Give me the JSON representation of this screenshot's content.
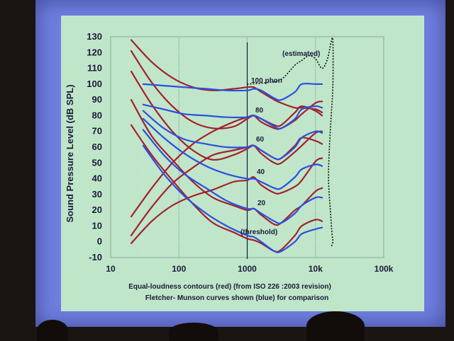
{
  "chart_data": {
    "type": "line",
    "title": "",
    "ylabel": "Sound Pressure Level (dB SPL)",
    "xlabel": "",
    "x_scale": "log",
    "xlim": [
      10,
      100000
    ],
    "ylim": [
      -10,
      130
    ],
    "x_ticks": [
      "10",
      "100",
      "1000",
      "10k",
      "100k"
    ],
    "y_ticks": [
      "130",
      "120",
      "110",
      "100",
      "90",
      "80",
      "70",
      "60",
      "50",
      "40",
      "30",
      "20",
      "10",
      "0",
      "-10"
    ],
    "grid": true,
    "caption_lines": [
      "Equal-loudness contours (red) (from ISO 226 :2003 revision)",
      "Fletcher- Munson curves shown (blue) for comparison"
    ],
    "annotations": {
      "estimated": "(estimated)",
      "phon100": "100 phon",
      "phon80": "80",
      "phon60": "60",
      "phon40": "40",
      "phon20": "20",
      "threshold": "(threshold)"
    },
    "colors": {
      "red": "#a4202c",
      "blue": "#2a50e0",
      "dotted": "#101010",
      "vline": "#101a40"
    },
    "vertical_line_x": 1000,
    "series": [
      {
        "color": "red",
        "x": [
          20,
          40,
          80,
          160,
          315,
          630,
          1000,
          1250,
          1600,
          2500,
          3150,
          5000,
          6300,
          10000,
          12500
        ],
        "y": [
          -1,
          13,
          23,
          29,
          33,
          38,
          39,
          41,
          36,
          31,
          31,
          35,
          39,
          51,
          53
        ]
      },
      {
        "color": "red",
        "x": [
          20,
          40,
          80,
          160,
          315,
          630,
          1000,
          1250,
          1600,
          2500,
          3150,
          5000,
          6300,
          10000,
          12500
        ],
        "y": [
          4,
          22,
          37,
          47,
          55,
          58,
          60,
          61,
          56,
          50,
          50,
          57,
          61,
          69,
          70
        ]
      },
      {
        "color": "red",
        "x": [
          20,
          40,
          80,
          160,
          315,
          630,
          1000,
          1250,
          1600,
          2500,
          3150,
          5000,
          6300,
          10000,
          12500
        ],
        "y": [
          16,
          34,
          50,
          62,
          70,
          76,
          79,
          80,
          76,
          72,
          72,
          77,
          81,
          88,
          89
        ]
      },
      {
        "color": "red",
        "x": [
          20,
          40,
          80,
          160,
          315,
          630,
          1000,
          1250,
          1600,
          2500,
          3150,
          5000,
          6300,
          10000,
          12500
        ],
        "y": [
          74,
          55,
          39,
          24,
          12,
          6,
          2,
          1,
          -1,
          -6,
          -5,
          4,
          10,
          14,
          13
        ]
      },
      {
        "color": "red",
        "x": [
          20,
          40,
          80,
          160,
          315,
          630,
          1000,
          1250,
          1600,
          2500,
          3150,
          5000,
          6300,
          10000,
          12500
        ],
        "y": [
          90,
          67,
          52,
          38,
          28,
          23,
          20,
          21,
          17,
          11,
          12,
          20,
          23,
          32,
          34
        ]
      },
      {
        "color": "red",
        "x": [
          20,
          40,
          80,
          160,
          315,
          630,
          1000,
          1250,
          1600,
          2500,
          3150,
          5000,
          6300,
          10000,
          12500
        ],
        "y": [
          128,
          114,
          104,
          98,
          96,
          97,
          98,
          98,
          95,
          90,
          88,
          85,
          85,
          84,
          82
        ]
      },
      {
        "color": "red",
        "x": [
          20,
          40,
          80,
          160,
          315,
          630,
          1000,
          1250,
          1600,
          2500,
          3150,
          5000,
          6300,
          10000,
          12500
        ],
        "y": [
          121,
          101,
          86,
          76,
          72,
          73,
          78,
          80,
          78,
          74,
          74,
          82,
          86,
          83,
          80
        ]
      },
      {
        "color": "red",
        "x": [
          20,
          40,
          80,
          160,
          315,
          630,
          1000,
          1250,
          1600,
          2500,
          3150,
          5000,
          6300,
          10000,
          12500
        ],
        "y": [
          108,
          87,
          70,
          58,
          52,
          55,
          59,
          61,
          58,
          53,
          53,
          61,
          66,
          64,
          62
        ]
      },
      {
        "color": "blue",
        "x": [
          30,
          60,
          120,
          250,
          500,
          1000,
          1250,
          1600,
          2500,
          3150,
          5000,
          6300,
          10000,
          12500
        ],
        "y": [
          100,
          99,
          98,
          97,
          96,
          96,
          97,
          96,
          91,
          90,
          95,
          100,
          100,
          100
        ]
      },
      {
        "color": "blue",
        "x": [
          30,
          60,
          120,
          250,
          500,
          1000,
          1250,
          1600,
          2500,
          3150,
          5000,
          6300,
          10000,
          12500
        ],
        "y": [
          87,
          84,
          81,
          80,
          79,
          79,
          80,
          78,
          73,
          72,
          78,
          84,
          86,
          85
        ]
      },
      {
        "color": "blue",
        "x": [
          30,
          60,
          120,
          250,
          500,
          1000,
          1250,
          1600,
          2500,
          3150,
          5000,
          6300,
          10000,
          12500
        ],
        "y": [
          83,
          72,
          65,
          62,
          60,
          60,
          61,
          58,
          53,
          53,
          60,
          66,
          70,
          69
        ]
      },
      {
        "color": "blue",
        "x": [
          30,
          60,
          120,
          250,
          500,
          1000,
          1250,
          1600,
          2500,
          3150,
          5000,
          6300,
          10000,
          12500
        ],
        "y": [
          78,
          66,
          56,
          48,
          43,
          40,
          40,
          38,
          34,
          34,
          41,
          46,
          49,
          48
        ]
      },
      {
        "color": "blue",
        "x": [
          30,
          60,
          120,
          250,
          500,
          1000,
          1250,
          1600,
          2500,
          3150,
          5000,
          6300,
          10000,
          12500
        ],
        "y": [
          71,
          55,
          43,
          34,
          26,
          21,
          21,
          18,
          13,
          12,
          18,
          23,
          28,
          28
        ]
      },
      {
        "color": "blue",
        "x": [
          30,
          60,
          120,
          250,
          500,
          1000,
          1250,
          1600,
          2500,
          3150,
          5000,
          6300,
          10000,
          12500
        ],
        "y": [
          61,
          43,
          29,
          18,
          10,
          4,
          3,
          0,
          -6,
          -6,
          0,
          5,
          8,
          9
        ]
      }
    ],
    "dotted_series": {
      "x": [
        1000,
        2000,
        3150,
        5000,
        6300,
        8000,
        10000,
        12500,
        15000,
        17000,
        18000,
        18000,
        17000,
        16000,
        15500,
        16500,
        17500,
        18000,
        17000
      ],
      "y": [
        100,
        101,
        103,
        112,
        115,
        118,
        116,
        110,
        116,
        127,
        127,
        100,
        80,
        60,
        40,
        20,
        5,
        0,
        -3
      ]
    }
  }
}
